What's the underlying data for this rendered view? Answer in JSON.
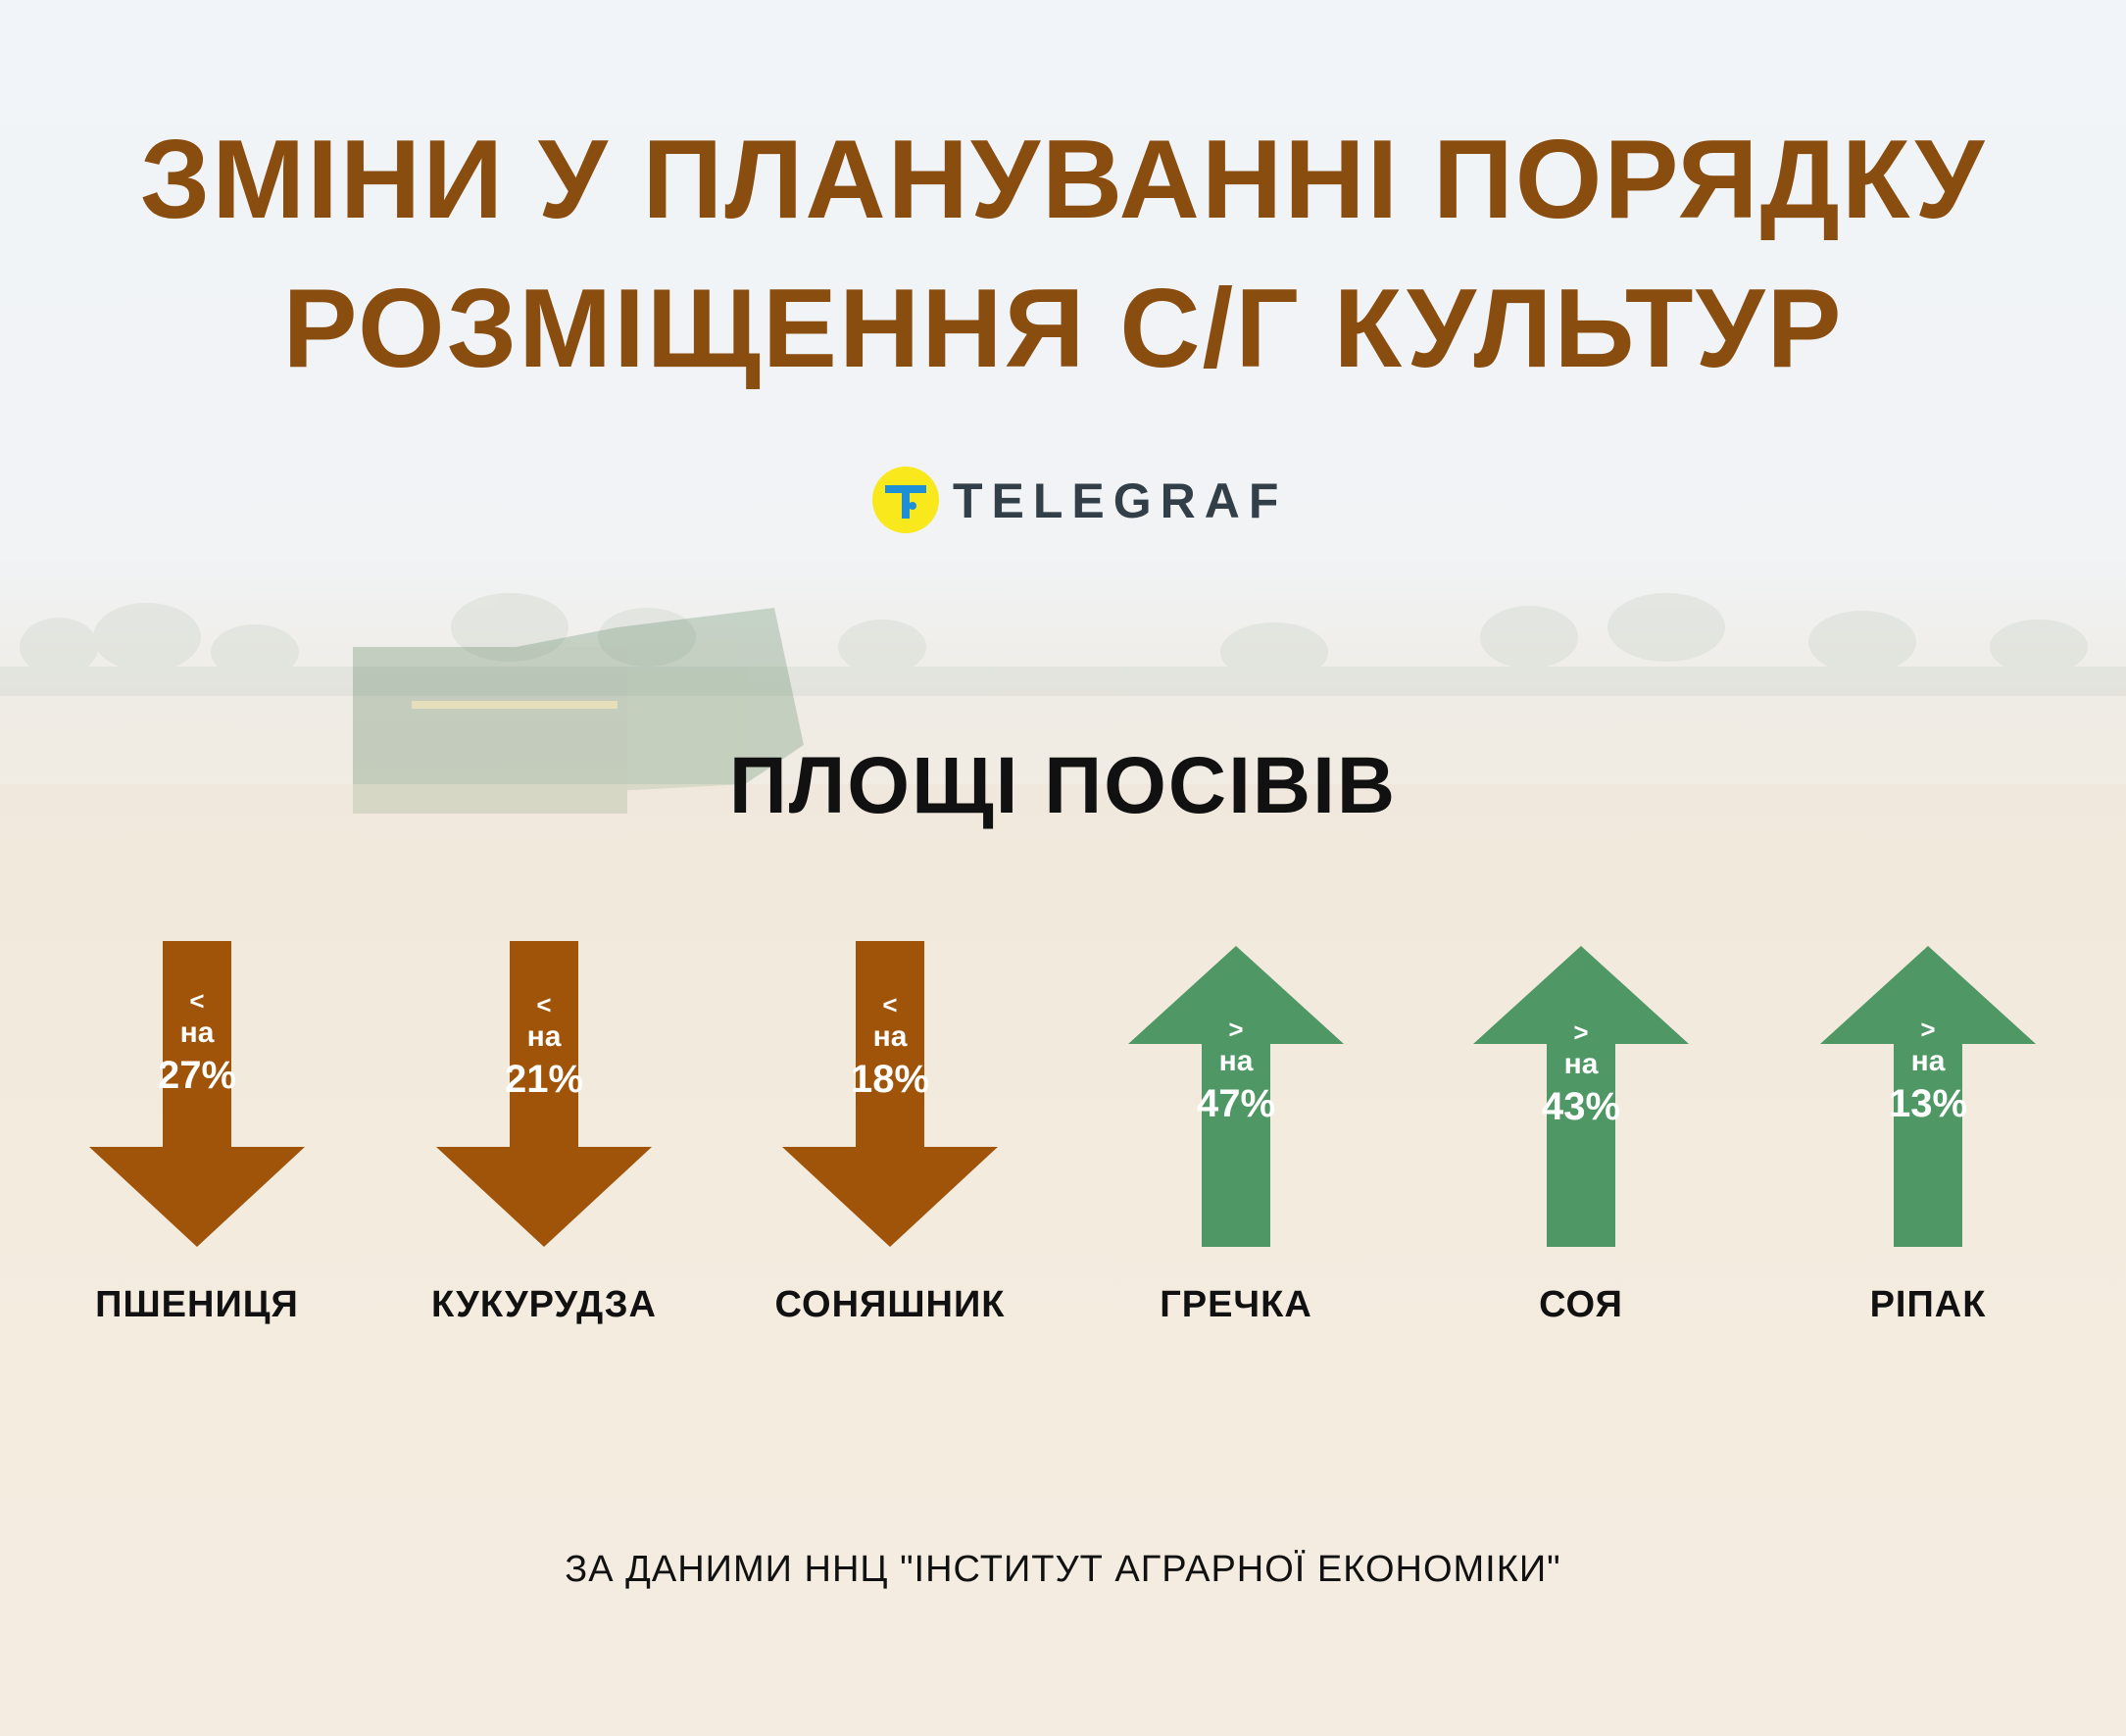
{
  "title": [
    "ЗМІНИ У ПЛАНУВАННІ ПОРЯДКУ",
    "РОЗМІЩЕННЯ С/Г КУЛЬТУР"
  ],
  "logo": {
    "text": "TELEGRAF",
    "icon": "telegraf-logo-icon"
  },
  "subtitle": "ПЛОЩІ ПОСІВІВ",
  "crops": [
    {
      "name": "ПШЕНИЦЯ",
      "direction": "down",
      "symbol": "<",
      "prefix": "на",
      "value": "27%"
    },
    {
      "name": "КУКУРУДЗА",
      "direction": "down",
      "symbol": "<",
      "prefix": "на",
      "value": "21%"
    },
    {
      "name": "СОНЯШНИК",
      "direction": "down",
      "symbol": "<",
      "prefix": "на",
      "value": "18%"
    },
    {
      "name": "ГРЕЧКА",
      "direction": "up",
      "symbol": ">",
      "prefix": "на",
      "value": "47%"
    },
    {
      "name": "СОЯ",
      "direction": "up",
      "symbol": ">",
      "prefix": "на",
      "value": "43%"
    },
    {
      "name": "РІПАК",
      "direction": "up",
      "symbol": ">",
      "prefix": "на",
      "value": "13%"
    }
  ],
  "colors": {
    "title": "#8a4d10",
    "down_arrow": "#a0540a",
    "up_arrow": "#4f9865",
    "logo_yellow": "#f8e81c",
    "logo_blue": "#1d8fd6"
  },
  "source": "ЗА ДАНИМИ ННЦ \"ІНСТИТУТ АГРАРНОЇ ЕКОНОМІКИ\""
}
